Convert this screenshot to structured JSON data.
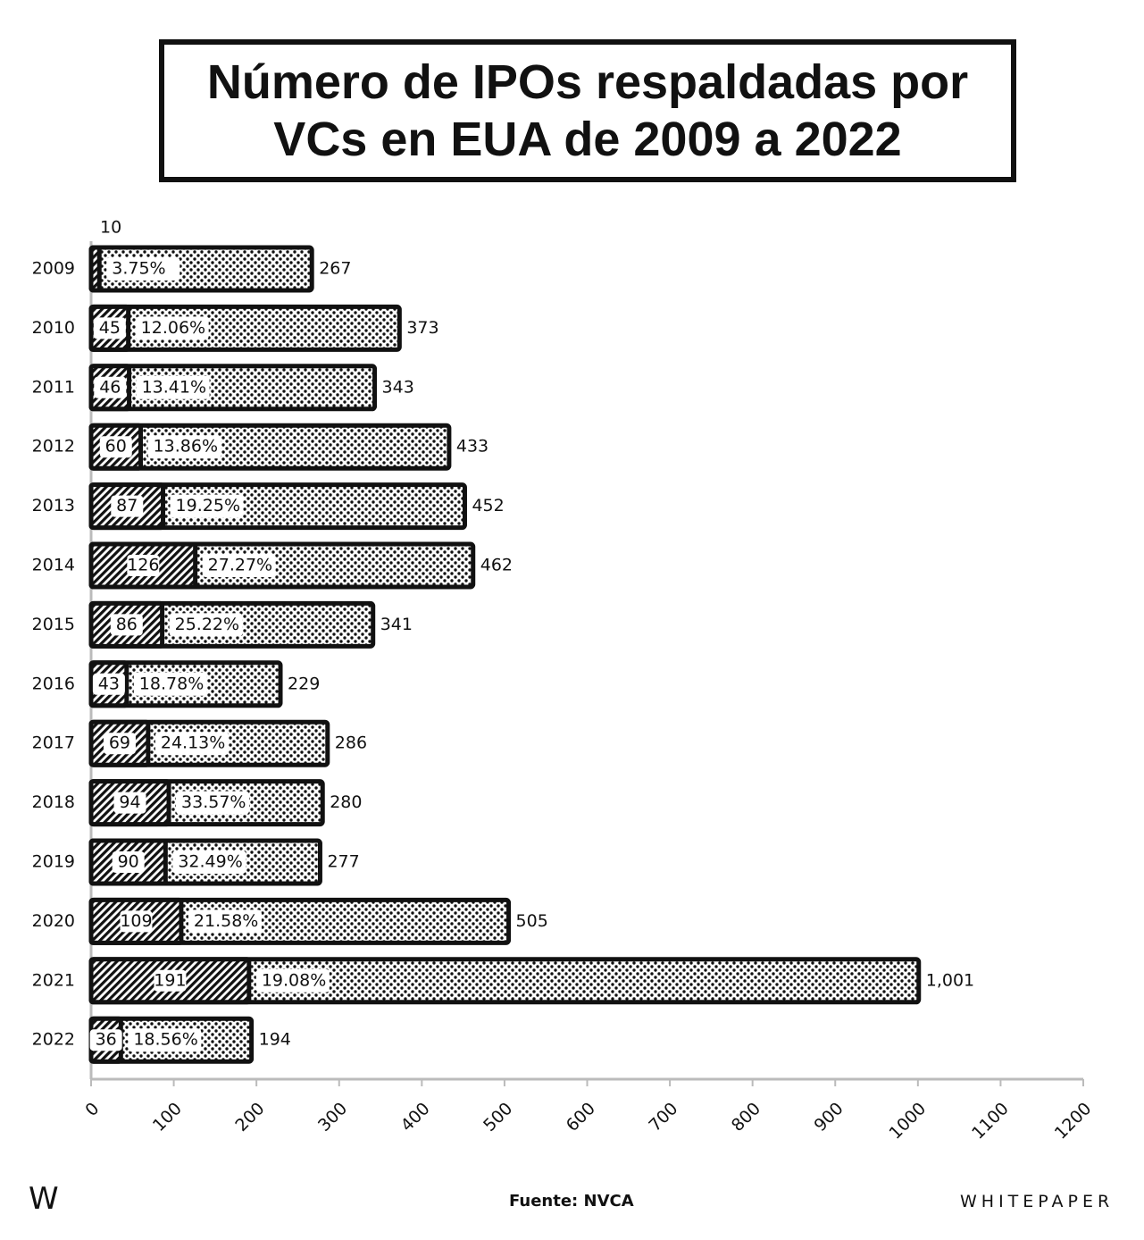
{
  "chart_data": {
    "type": "bar",
    "orientation": "horizontal",
    "title": "Número de IPOs respaldadas por VCs en EUA de 2009 a 2022",
    "categories": [
      "2009",
      "2010",
      "2011",
      "2012",
      "2013",
      "2014",
      "2015",
      "2016",
      "2017",
      "2018",
      "2019",
      "2020",
      "2021",
      "2022"
    ],
    "series": [
      {
        "color": "#111111",
        "values": [
          267,
          373,
          343,
          433,
          452,
          462,
          341,
          229,
          286,
          280,
          277,
          505,
          1001,
          194
        ],
        "value_labels": [
          "267",
          "373",
          "343",
          "433",
          "452",
          "462",
          "341",
          "229",
          "286",
          "280",
          "277",
          "505",
          "1,001",
          "194"
        ]
      },
      {
        "color": "#111111",
        "values": [
          10,
          45,
          46,
          60,
          87,
          126,
          86,
          43,
          69,
          94,
          90,
          109,
          191,
          36
        ]
      }
    ],
    "share_labels": [
      "3.75%",
      "12.06%",
      "13.41%",
      "13.86%",
      "19.25%",
      "27.27%",
      "25.22%",
      "18.78%",
      "24.13%",
      "33.57%",
      "32.49%",
      "21.58%",
      "19.08%",
      "18.56%"
    ],
    "xlim": [
      0,
      1200
    ],
    "xticks": [
      0,
      100,
      200,
      300,
      400,
      500,
      600,
      700,
      800,
      900,
      1000,
      1100,
      1200
    ],
    "logo": "W",
    "source": "Fuente: NVCA",
    "brand": "WHITEPAPER"
  }
}
